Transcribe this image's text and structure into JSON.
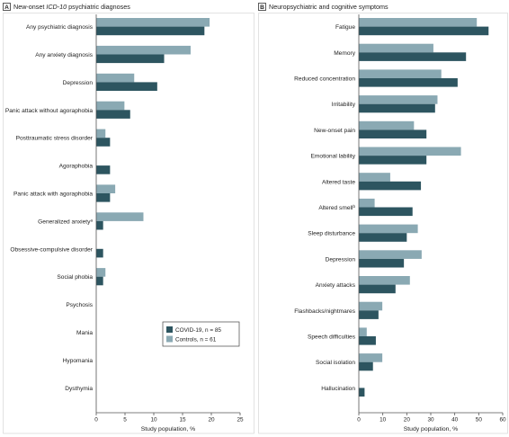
{
  "colors": {
    "covid": "#2d5560",
    "controls": "#8aa9b3",
    "axis": "#555555"
  },
  "chart_data": [
    {
      "type": "bar",
      "panel_letter": "A",
      "title_prefix": "New-onset ",
      "title_italic": "ICD-10",
      "title_suffix": " psychiatric diagnoses",
      "xlabel": "Study population, %",
      "xlim": [
        0,
        25
      ],
      "xticks": [
        0,
        5,
        10,
        15,
        20,
        25
      ],
      "categories": [
        "Any psychiatric diagnosis",
        "Any anxiety diagnosis",
        "Depression",
        "Panic attack without agoraphobia",
        "Posttraumatic stress disorder",
        "Agoraphobia",
        "Panic attack with agoraphobia",
        "Generalized anxiety",
        "Obsessive-compulsive disorder",
        "Social phobia",
        "Psychosis",
        "Mania",
        "Hypomania",
        "Dysthymia"
      ],
      "category_superscripts": [
        "",
        "",
        "",
        "",
        "",
        "",
        "",
        "a",
        "",
        "",
        "",
        "",
        "",
        ""
      ],
      "series": [
        {
          "name": "Controls, n = 61",
          "values": [
            19.7,
            16.4,
            6.6,
            4.9,
            1.6,
            0,
            3.3,
            8.2,
            0,
            1.6,
            0,
            0,
            0,
            0
          ]
        },
        {
          "name": "COVID-19, n = 85",
          "values": [
            18.8,
            11.8,
            10.6,
            5.9,
            2.4,
            2.4,
            2.4,
            1.2,
            1.2,
            1.2,
            0,
            0,
            0,
            0
          ]
        }
      ],
      "legend": {
        "placement": "bottom-right",
        "entries": [
          "COVID-19, n = 85",
          "Controls, n = 61"
        ]
      }
    },
    {
      "type": "bar",
      "panel_letter": "B",
      "title_prefix": "Neuropsychiatric and cognitive symptoms",
      "title_italic": "",
      "title_suffix": "",
      "xlabel": "Study population, %",
      "xlim": [
        0,
        60
      ],
      "xticks": [
        0,
        10,
        20,
        30,
        40,
        50,
        60
      ],
      "categories": [
        "Fatigue",
        "Memory",
        "Reduced concentration",
        "Irritability",
        "New-onset pain",
        "Emotional lability",
        "Altered taste",
        "Altered smell",
        "Sleep disturbance",
        "Depression",
        "Anxiety attacks",
        "Flashbacks/nightmares",
        "Speech difficulties",
        "Social isolation",
        "Hallucination"
      ],
      "category_superscripts": [
        "",
        "",
        "",
        "",
        "",
        "",
        "",
        "b",
        "",
        "",
        "",
        "",
        "",
        "",
        ""
      ],
      "series": [
        {
          "name": "Controls, n = 61",
          "values": [
            49.2,
            31.1,
            34.4,
            32.8,
            23.0,
            42.6,
            13.1,
            6.6,
            24.6,
            26.2,
            21.3,
            9.8,
            3.3,
            9.8,
            0
          ]
        },
        {
          "name": "COVID-19, n = 85",
          "values": [
            54.1,
            44.7,
            41.2,
            31.8,
            28.2,
            28.2,
            25.9,
            22.4,
            20.0,
            18.8,
            15.3,
            8.2,
            7.1,
            5.9,
            2.4
          ]
        }
      ]
    }
  ]
}
